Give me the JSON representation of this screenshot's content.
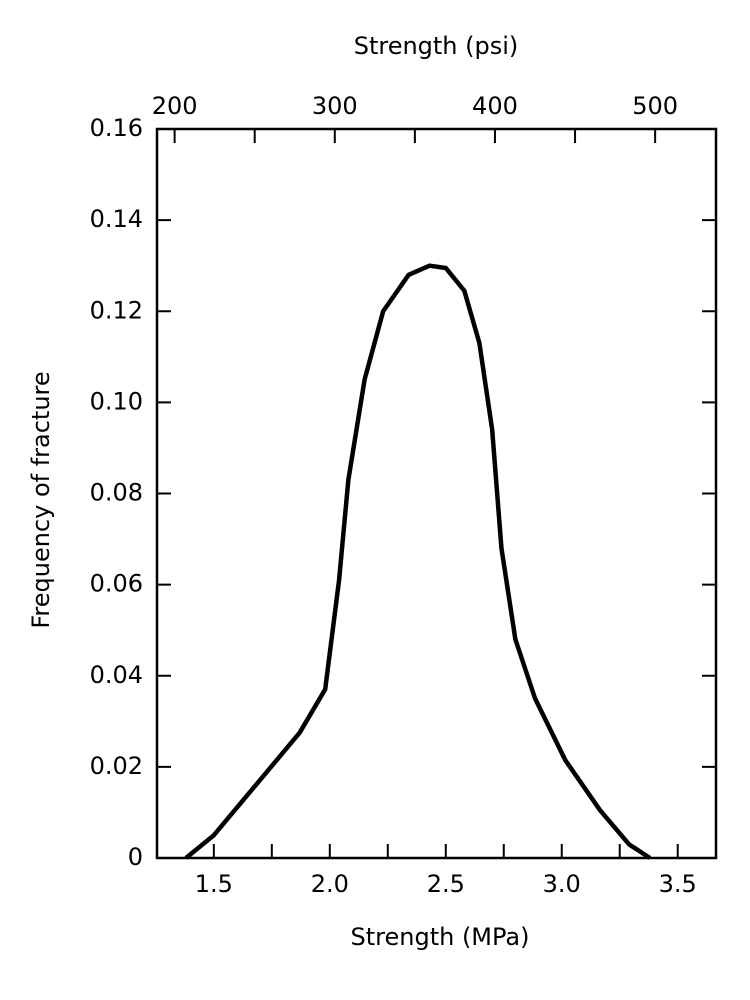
{
  "chart_data": {
    "type": "line",
    "x2_label": "Strength (psi)",
    "xlabel": "Strength (MPa)",
    "ylabel": "Frequency of fracture",
    "x": [
      1.38,
      1.5,
      1.87,
      1.98,
      2.04,
      2.08,
      2.15,
      2.23,
      2.34,
      2.43,
      2.5,
      2.58,
      2.645,
      2.7,
      2.74,
      2.8,
      2.885,
      3.015,
      3.165,
      3.29,
      3.38
    ],
    "series": [
      {
        "color": "#000000",
        "values": [
          0,
          0.005,
          0.0275,
          0.037,
          0.061,
          0.083,
          0.105,
          0.12,
          0.128,
          0.13,
          0.1295,
          0.1245,
          0.113,
          0.094,
          0.068,
          0.048,
          0.035,
          0.0215,
          0.0105,
          0.003,
          0
        ]
      }
    ],
    "xlim": [
      1.255,
      3.665
    ],
    "xticks": [
      1.5,
      {
        "value": 2,
        "label": "2.0"
      },
      2.5,
      {
        "value": 3,
        "label": "3.0"
      },
      3.5
    ],
    "x_minor_ticks": [
      1.75,
      2.25,
      2.75,
      3.25
    ],
    "x2lim": [
      189,
      538
    ],
    "x2ticks": [
      200,
      300,
      400,
      500
    ],
    "x2_minor_ticks": [
      250,
      350,
      450
    ],
    "ylim": [
      0,
      0.16
    ],
    "yticks": [
      0,
      0.02,
      0.04,
      0.06,
      0.08,
      {
        "value": 0.1,
        "label": "0.10"
      },
      0.12,
      0.14,
      0.16
    ],
    "grid": false
  }
}
